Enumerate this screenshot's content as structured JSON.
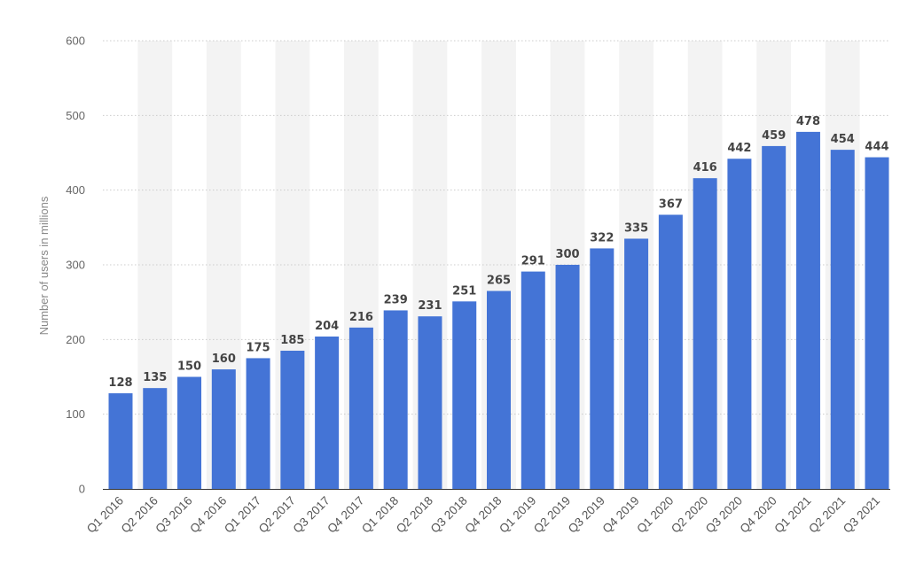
{
  "chart_data": {
    "type": "bar",
    "title": "",
    "xlabel": "",
    "ylabel": "Number of users in millions",
    "ylim": [
      0,
      600
    ],
    "yticks": [
      0,
      100,
      200,
      300,
      400,
      500,
      600
    ],
    "grid": true,
    "categories": [
      "Q1 2016",
      "Q2 2016",
      "Q3 2016",
      "Q4 2016",
      "Q1 2017",
      "Q2 2017",
      "Q3 2017",
      "Q4 2017",
      "Q1 2018",
      "Q2 2018",
      "Q3 2018",
      "Q4 2018",
      "Q1 2019",
      "Q2 2019",
      "Q3 2019",
      "Q4 2019",
      "Q1 2020",
      "Q2 2020",
      "Q3 2020",
      "Q4 2020",
      "Q1 2021",
      "Q2 2021",
      "Q3 2021"
    ],
    "values": [
      128,
      135,
      150,
      160,
      175,
      185,
      204,
      216,
      239,
      231,
      251,
      265,
      291,
      300,
      322,
      335,
      367,
      416,
      442,
      459,
      478,
      454,
      444
    ],
    "colors": {
      "bar": "#4474d6",
      "band": "#f3f3f3",
      "grid": "#cccccc"
    }
  }
}
